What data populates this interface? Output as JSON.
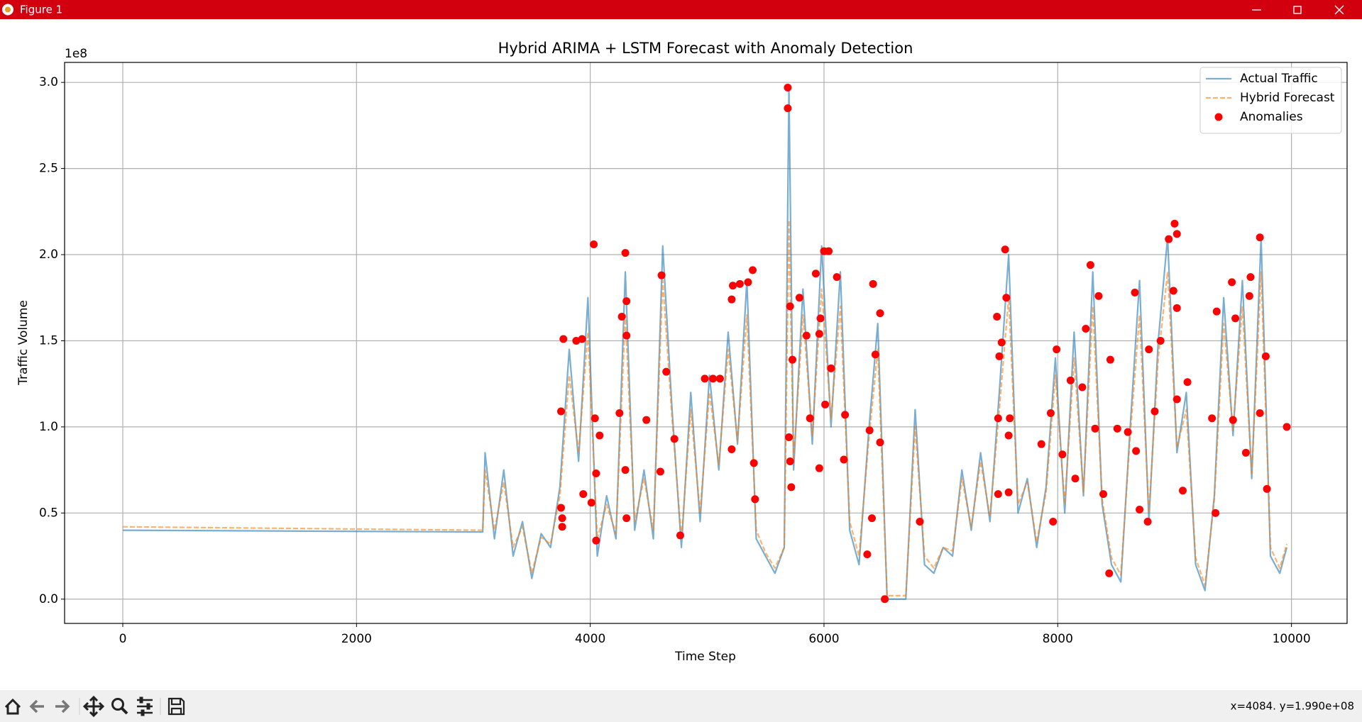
{
  "window": {
    "title": "Figure 1"
  },
  "chart_data": {
    "type": "line",
    "title": "Hybrid ARIMA + LSTM Forecast with Anomaly Detection",
    "xlabel": "Time Step",
    "ylabel": "Traffic Volume",
    "y_offset_label": "1e8",
    "xlim": [
      -498,
      10476
    ],
    "ylim": [
      -0.141,
      3.116
    ],
    "xticks": [
      0,
      2000,
      4000,
      6000,
      8000,
      10000
    ],
    "yticks": [
      {
        "value": 0,
        "label": "0.0"
      },
      0.5,
      {
        "value": 1,
        "label": "1.0"
      },
      1.5,
      {
        "value": 2,
        "label": "2.0"
      },
      2.5,
      {
        "value": 3,
        "label": "3.0"
      }
    ],
    "grid": true,
    "legend": "upper right",
    "x": [
      0,
      3080,
      3100,
      3180,
      3260,
      3340,
      3420,
      3500,
      3580,
      3660,
      3740,
      3820,
      3900,
      3980,
      4060,
      4140,
      4220,
      4300,
      4380,
      4460,
      4540,
      4620,
      4700,
      4780,
      4860,
      4940,
      5020,
      5100,
      5180,
      5260,
      5340,
      5420,
      5500,
      5580,
      5660,
      5700,
      5740,
      5820,
      5900,
      5980,
      6060,
      6140,
      6220,
      6300,
      6380,
      6460,
      6540,
      6620,
      6700,
      6780,
      6860,
      6940,
      7020,
      7100,
      7180,
      7260,
      7340,
      7420,
      7500,
      7580,
      7660,
      7740,
      7820,
      7900,
      7980,
      8060,
      8140,
      8220,
      8300,
      8380,
      8460,
      8540,
      8620,
      8700,
      8780,
      8860,
      8940,
      9020,
      9100,
      9180,
      9260,
      9340,
      9420,
      9500,
      9580,
      9660,
      9740,
      9820,
      9900,
      9960
    ],
    "series": [
      {
        "name": "Actual Traffic",
        "color": "#1f77b4",
        "linestyle": "solid",
        "values": [
          0.4,
          0.39,
          0.85,
          0.35,
          0.75,
          0.25,
          0.45,
          0.12,
          0.38,
          0.3,
          0.65,
          1.45,
          0.8,
          1.75,
          0.25,
          0.6,
          0.35,
          1.9,
          0.4,
          0.75,
          0.35,
          2.05,
          1.1,
          0.3,
          1.2,
          0.45,
          1.3,
          0.75,
          1.55,
          0.9,
          1.85,
          0.35,
          0.25,
          0.15,
          0.3,
          2.97,
          0.75,
          1.8,
          0.9,
          2.05,
          1.0,
          1.9,
          0.4,
          0.2,
          0.95,
          1.6,
          0,
          0,
          0,
          1.1,
          0.2,
          0.15,
          0.3,
          0.25,
          0.75,
          0.4,
          0.85,
          0.45,
          1.2,
          2.0,
          0.5,
          0.7,
          0.3,
          0.65,
          1.4,
          0.5,
          1.55,
          0.6,
          1.9,
          0.55,
          0.2,
          0.1,
          1.0,
          1.85,
          0.45,
          1.5,
          2.1,
          0.85,
          1.2,
          0.2,
          0.05,
          0.6,
          1.75,
          0.95,
          1.85,
          0.7,
          2.1,
          0.25,
          0.15,
          0.3
        ]
      },
      {
        "name": "Hybrid Forecast",
        "color": "#ff7f0e",
        "linestyle": "dashed",
        "values": [
          0.42,
          0.4,
          0.75,
          0.4,
          0.68,
          0.3,
          0.42,
          0.15,
          0.36,
          0.32,
          0.6,
          1.3,
          0.85,
          1.55,
          0.35,
          0.55,
          0.38,
          1.65,
          0.45,
          0.7,
          0.4,
          1.85,
          1.05,
          0.35,
          1.1,
          0.5,
          1.2,
          0.78,
          1.45,
          0.92,
          1.65,
          0.4,
          0.27,
          0.18,
          0.3,
          2.2,
          0.8,
          1.65,
          0.95,
          1.8,
          1.05,
          1.7,
          0.45,
          0.25,
          0.9,
          1.45,
          0.02,
          0.02,
          0.02,
          1.0,
          0.25,
          0.18,
          0.3,
          0.28,
          0.7,
          0.42,
          0.8,
          0.48,
          1.1,
          1.75,
          0.55,
          0.68,
          0.33,
          0.62,
          1.3,
          0.55,
          1.4,
          0.62,
          1.7,
          0.58,
          0.24,
          0.14,
          0.95,
          1.65,
          0.5,
          1.4,
          1.9,
          0.88,
          1.1,
          0.24,
          0.08,
          0.58,
          1.6,
          0.98,
          1.7,
          0.72,
          1.9,
          0.3,
          0.18,
          0.32
        ]
      },
      {
        "name": "Anomalies",
        "type": "scatter",
        "color": "#ff0000",
        "x": [
          3750,
          3750,
          3760,
          3760,
          3770,
          3880,
          3930,
          3940,
          4010,
          4030,
          4040,
          4050,
          4050,
          4080,
          4250,
          4270,
          4300,
          4310,
          4310,
          4300,
          4310,
          4480,
          4600,
          4610,
          4650,
          4720,
          4770,
          4980,
          5050,
          5110,
          5210,
          5210,
          5220,
          5280,
          5350,
          5390,
          5400,
          5410,
          5690,
          5690,
          5700,
          5710,
          5710,
          5720,
          5730,
          5790,
          5850,
          5880,
          5930,
          5960,
          5960,
          5970,
          6000,
          6010,
          6040,
          6060,
          6110,
          6170,
          6180,
          6370,
          6390,
          6410,
          6420,
          6440,
          6480,
          6480,
          6520,
          6820,
          7480,
          7500,
          7490,
          7490,
          7520,
          7550,
          7560,
          7580,
          7590,
          7580,
          7860,
          7940,
          7960,
          7990,
          8040,
          8110,
          8150,
          8210,
          8240,
          8280,
          8320,
          8350,
          8390,
          8440,
          8450,
          8510,
          8600,
          8660,
          8670,
          8700,
          8770,
          8780,
          8830,
          8880,
          8950,
          8990,
          9000,
          9020,
          9020,
          9020,
          9070,
          9110,
          9320,
          9350,
          9360,
          9490,
          9500,
          9520,
          9610,
          9640,
          9650,
          9730,
          9730,
          9780,
          9790,
          9960
        ],
        "values": [
          1.09,
          0.53,
          0.47,
          0.42,
          1.51,
          1.5,
          1.51,
          0.61,
          0.56,
          2.06,
          1.05,
          0.73,
          0.34,
          0.95,
          1.08,
          1.64,
          2.01,
          1.73,
          1.53,
          0.75,
          0.47,
          1.04,
          0.74,
          1.88,
          1.32,
          0.93,
          0.37,
          1.28,
          1.28,
          1.28,
          0.87,
          1.74,
          1.82,
          1.83,
          1.84,
          1.91,
          0.79,
          0.58,
          2.97,
          2.85,
          0.94,
          0.8,
          1.7,
          0.65,
          1.39,
          1.75,
          1.53,
          1.05,
          1.89,
          0.76,
          1.54,
          1.63,
          2.02,
          1.13,
          2.02,
          1.34,
          1.87,
          0.81,
          1.07,
          0.26,
          0.98,
          0.47,
          1.83,
          1.42,
          0.91,
          1.66,
          0,
          0.45,
          1.64,
          1.41,
          1.05,
          0.61,
          1.49,
          2.03,
          1.75,
          0.95,
          1.05,
          0.62,
          0.9,
          1.08,
          0.45,
          1.45,
          0.84,
          1.27,
          0.7,
          1.23,
          1.57,
          1.94,
          0.99,
          1.76,
          0.61,
          0.15,
          1.39,
          0.99,
          0.97,
          1.78,
          0.86,
          0.52,
          0.45,
          1.45,
          1.09,
          1.5,
          2.09,
          1.79,
          2.18,
          2.12,
          1.69,
          1.16,
          0.63,
          1.26,
          1.05,
          0.5,
          1.67,
          1.84,
          1.04,
          1.63,
          0.85,
          1.76,
          1.87,
          2.1,
          1.08,
          1.41,
          0.64,
          1.0
        ]
      }
    ]
  },
  "status": {
    "text": "x=4084. y=1.990e+08"
  }
}
